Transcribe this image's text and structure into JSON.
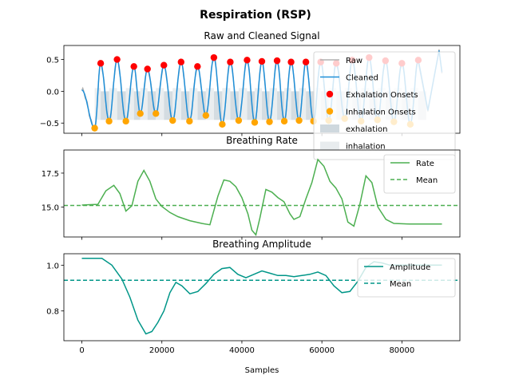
{
  "figure": {
    "suptitle": "Respiration (RSP)",
    "xlabel": "Samples",
    "x_ticks": [
      0,
      20000,
      40000,
      60000,
      80000
    ],
    "x_tick_labels": [
      "0",
      "20000",
      "40000",
      "60000",
      "80000"
    ],
    "xlim": [
      -4500,
      94500
    ]
  },
  "chart_data": [
    {
      "type": "line",
      "title": "Raw and Cleaned Signal",
      "xlabel": "",
      "ylabel": "",
      "ylim": [
        -0.66,
        0.72
      ],
      "y_ticks": [
        -0.5,
        0.0,
        0.5
      ],
      "y_tick_labels": [
        "−0.5",
        "0.0",
        "0.5"
      ],
      "legend_position": "upper right",
      "series": [
        {
          "name": "Raw",
          "color": "#b0b0b0",
          "style": "line"
        },
        {
          "name": "Cleaned",
          "color": "#1f8fd8",
          "style": "line"
        },
        {
          "name": "Exhalation Onsets",
          "color": "#ff0000",
          "style": "marker"
        },
        {
          "name": "Inhalation Onsets",
          "color": "#ffa500",
          "style": "marker"
        },
        {
          "name": "exhalation",
          "color": "#cfd8de",
          "style": "patch"
        },
        {
          "name": "inhalation",
          "color": "#e8ecee",
          "style": "patch"
        }
      ],
      "exhalation_onsets": {
        "x": [
          4700,
          8800,
          13000,
          16400,
          20500,
          24800,
          28900,
          33000,
          37100,
          41300,
          45000,
          48800,
          52300,
          56000,
          59700,
          63600,
          67600,
          71800,
          75900,
          80000,
          84100
        ],
        "y": [
          0.44,
          0.5,
          0.39,
          0.35,
          0.41,
          0.46,
          0.39,
          0.53,
          0.46,
          0.49,
          0.47,
          0.48,
          0.46,
          0.46,
          0.46,
          0.44,
          0.49,
          0.53,
          0.48,
          0.44,
          0.49
        ]
      },
      "inhalation_onsets": {
        "x": [
          3200,
          6800,
          11000,
          14600,
          18500,
          22700,
          26900,
          31000,
          35100,
          39200,
          43200,
          46900,
          50600,
          54300,
          57900,
          61700,
          65700,
          69800,
          73900,
          78000,
          82100
        ],
        "y": [
          -0.58,
          -0.47,
          -0.47,
          -0.35,
          -0.35,
          -0.46,
          -0.47,
          -0.38,
          -0.52,
          -0.46,
          -0.49,
          -0.48,
          -0.47,
          -0.46,
          -0.47,
          -0.46,
          -0.43,
          -0.47,
          -0.45,
          -0.48,
          -0.52
        ]
      }
    },
    {
      "type": "line",
      "title": "Breathing Rate",
      "xlabel": "",
      "ylabel": "",
      "ylim": [
        12.8,
        19.2
      ],
      "y_ticks": [
        15.0,
        17.5
      ],
      "y_tick_labels": [
        "15.0",
        "17.5"
      ],
      "legend_position": "upper right",
      "mean": 15.12,
      "series": [
        {
          "name": "Rate",
          "color": "#4caf50",
          "x": [
            0,
            2000,
            4000,
            6000,
            8000,
            9500,
            11000,
            12500,
            14000,
            15500,
            17000,
            18500,
            20000,
            22000,
            24000,
            27000,
            30000,
            32000,
            34000,
            35500,
            37000,
            38500,
            40000,
            41500,
            42500,
            43500,
            44500,
            46000,
            47500,
            49000,
            50500,
            52000,
            53000,
            54500,
            56000,
            57500,
            59000,
            60500,
            62000,
            63500,
            65000,
            66500,
            68000,
            69500,
            71000,
            72500,
            74000,
            76000,
            78000,
            82000,
            86000,
            88000,
            90000
          ],
          "y": [
            15.15,
            15.18,
            15.2,
            16.2,
            16.6,
            16.0,
            14.7,
            15.1,
            16.9,
            17.7,
            16.9,
            15.6,
            15.05,
            14.6,
            14.3,
            14.0,
            13.8,
            13.7,
            15.8,
            17.0,
            16.9,
            16.5,
            15.7,
            14.5,
            13.3,
            12.95,
            14.2,
            16.3,
            16.1,
            15.7,
            15.4,
            14.5,
            14.1,
            14.3,
            15.6,
            16.8,
            18.5,
            18.0,
            16.9,
            16.4,
            15.6,
            13.9,
            13.6,
            15.2,
            17.3,
            16.8,
            15.0,
            14.1,
            13.8,
            13.75,
            13.75,
            13.75,
            13.75
          ]
        },
        {
          "name": "Mean",
          "color": "#4caf50",
          "style": "dashed"
        }
      ]
    },
    {
      "type": "line",
      "title": "Breathing Amplitude",
      "xlabel": "Samples",
      "ylabel": "",
      "ylim": [
        0.67,
        1.05
      ],
      "y_ticks": [
        0.8,
        1.0
      ],
      "y_tick_labels": [
        "0.8",
        "1.0"
      ],
      "legend_position": "upper right",
      "mean": 0.934,
      "series": [
        {
          "name": "Amplitude",
          "color": "#009688",
          "x": [
            0,
            2500,
            5000,
            7500,
            10000,
            12000,
            14000,
            16000,
            17500,
            19000,
            20500,
            22000,
            23500,
            25000,
            27000,
            29000,
            31000,
            33000,
            35000,
            37000,
            39000,
            41000,
            43000,
            45000,
            47000,
            49000,
            51000,
            53000,
            55000,
            57000,
            59000,
            61000,
            63000,
            65000,
            67000,
            69000,
            71000,
            73000,
            75000,
            77000,
            79000,
            82000,
            86000,
            90000
          ],
          "y": [
            1.03,
            1.03,
            1.03,
            1.0,
            0.94,
            0.86,
            0.76,
            0.7,
            0.71,
            0.75,
            0.8,
            0.88,
            0.925,
            0.91,
            0.875,
            0.885,
            0.92,
            0.96,
            0.985,
            0.99,
            0.96,
            0.945,
            0.96,
            0.975,
            0.965,
            0.955,
            0.955,
            0.95,
            0.955,
            0.96,
            0.97,
            0.955,
            0.91,
            0.88,
            0.885,
            0.93,
            0.99,
            1.015,
            1.01,
            1.0,
            1.0,
            1.0,
            1.0,
            1.0
          ]
        },
        {
          "name": "Mean",
          "color": "#009688",
          "style": "dashed"
        }
      ]
    }
  ]
}
